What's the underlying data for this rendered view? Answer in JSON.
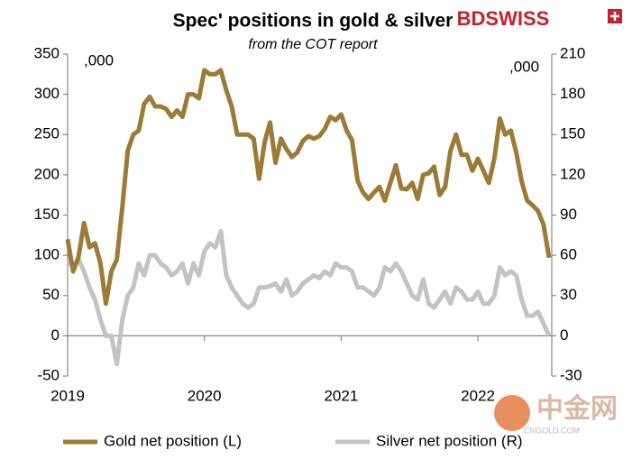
{
  "chart_data": {
    "type": "line",
    "title": "Spec' positions in gold & silver",
    "subtitle": "from the COT report",
    "left_unit_note": ",000",
    "right_unit_note": ",000",
    "logo": "BDSWISS",
    "watermark": "中金网",
    "watermark_sub": "CNGOLD.COM",
    "x": [
      2019,
      2019.04,
      2019.08,
      2019.12,
      2019.16,
      2019.2,
      2019.24,
      2019.28,
      2019.32,
      2019.36,
      2019.4,
      2019.44,
      2019.48,
      2019.52,
      2019.56,
      2019.6,
      2019.64,
      2019.68,
      2019.72,
      2019.76,
      2019.8,
      2019.84,
      2019.88,
      2019.92,
      2019.96,
      2020,
      2020.04,
      2020.08,
      2020.12,
      2020.16,
      2020.2,
      2020.24,
      2020.28,
      2020.32,
      2020.36,
      2020.4,
      2020.44,
      2020.48,
      2020.52,
      2020.56,
      2020.6,
      2020.64,
      2020.68,
      2020.72,
      2020.76,
      2020.8,
      2020.84,
      2020.88,
      2020.92,
      2020.96,
      2021,
      2021.04,
      2021.08,
      2021.12,
      2021.16,
      2021.2,
      2021.24,
      2021.28,
      2021.32,
      2021.36,
      2021.4,
      2021.44,
      2021.48,
      2021.52,
      2021.56,
      2021.6,
      2021.64,
      2021.68,
      2021.72,
      2021.76,
      2021.8,
      2021.84,
      2021.88,
      2021.92,
      2021.96,
      2022,
      2022.04,
      2022.08,
      2022.12,
      2022.16,
      2022.2,
      2022.24,
      2022.28,
      2022.32,
      2022.36,
      2022.4,
      2022.44,
      2022.48,
      2022.52
    ],
    "xlim": [
      2019,
      2022.54
    ],
    "xticks": [
      2019,
      2020,
      2021,
      2022
    ],
    "ylim": [
      -50,
      350
    ],
    "yticks": [
      -50,
      0,
      50,
      100,
      150,
      200,
      250,
      300,
      350
    ],
    "y2lim": [
      -30,
      210
    ],
    "y2ticks": [
      -30,
      0,
      30,
      60,
      90,
      120,
      150,
      180,
      210
    ],
    "legend": "bottom",
    "series": [
      {
        "name": "Gold net position (L)",
        "color": "#9b7b36",
        "axis": "y",
        "values": [
          120,
          80,
          98,
          140,
          110,
          115,
          90,
          40,
          80,
          95,
          160,
          230,
          250,
          255,
          288,
          297,
          285,
          285,
          282,
          272,
          280,
          272,
          300,
          300,
          295,
          330,
          325,
          325,
          330,
          305,
          285,
          250,
          250,
          250,
          245,
          195,
          240,
          265,
          215,
          245,
          232,
          222,
          228,
          242,
          248,
          245,
          248,
          257,
          272,
          268,
          275,
          255,
          243,
          193,
          178,
          170,
          178,
          185,
          168,
          190,
          212,
          183,
          182,
          190,
          170,
          200,
          202,
          210,
          175,
          185,
          230,
          250,
          225,
          225,
          205,
          220,
          205,
          190,
          220,
          270,
          250,
          255,
          228,
          192,
          168,
          162,
          155,
          138,
          97
        ]
      },
      {
        "name": "Silver net position (R)",
        "color": "#c3c3c3",
        "axis": "y2",
        "values": [
          57,
          51,
          57,
          48,
          36,
          27,
          12,
          0,
          0,
          -21,
          12,
          30,
          36,
          54,
          45,
          60,
          60,
          54,
          51,
          45,
          48,
          54,
          39,
          54,
          45,
          63,
          69,
          66,
          78,
          45,
          36,
          30,
          24,
          21,
          24,
          36,
          36,
          37,
          39,
          33,
          42,
          30,
          33,
          39,
          42,
          45,
          43,
          48,
          45,
          54,
          51,
          51,
          48,
          36,
          36,
          33,
          30,
          36,
          51,
          48,
          54,
          48,
          39,
          30,
          27,
          42,
          24,
          21,
          27,
          33,
          24,
          36,
          33,
          27,
          27,
          33,
          24,
          24,
          30,
          51,
          45,
          48,
          45,
          27,
          15,
          15,
          18,
          9,
          0
        ]
      }
    ]
  }
}
